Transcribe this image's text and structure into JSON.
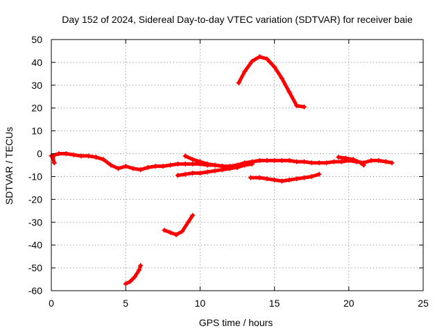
{
  "chart_data": {
    "type": "line",
    "title": "Day 152 of 2024, Sidereal Day-to-day VTEC variation (SDTVAR) for receiver baie",
    "xlabel": "GPS time / hours",
    "ylabel": "SDTVAR / TECUs",
    "xlim": [
      0,
      25
    ],
    "ylim": [
      -60,
      50
    ],
    "xticks": [
      0,
      5,
      10,
      15,
      20,
      25
    ],
    "yticks": [
      50,
      40,
      30,
      20,
      10,
      0,
      -10,
      -20,
      -30,
      -40,
      -50,
      -60
    ],
    "grid": true,
    "legend": "none",
    "colors": {
      "series": "#ff0000",
      "frame": "#000000",
      "grid": "#a0a0a0"
    },
    "series": [
      {
        "name": "SDTVAR",
        "segments": [
          {
            "x": [
              0.0,
              0.5,
              1.0,
              1.5,
              2.0,
              2.5,
              3.0,
              3.5,
              4.0,
              4.5,
              5.0,
              5.5,
              6.0,
              6.5,
              7.0,
              7.5,
              8.0,
              8.5,
              9.0,
              9.5,
              10.0,
              10.5,
              11.0,
              11.5,
              12.0,
              12.5,
              13.0,
              13.5,
              14.0,
              14.5,
              15.0,
              15.5,
              16.0,
              16.5,
              17.0,
              17.5,
              18.0,
              18.5,
              19.0,
              19.5,
              20.0,
              20.5,
              21.0,
              21.5,
              22.0,
              22.5,
              22.9
            ],
            "y": [
              -1.0,
              0.0,
              0.0,
              -0.5,
              -1.0,
              -1.0,
              -1.5,
              -2.5,
              -5.0,
              -6.5,
              -5.5,
              -6.5,
              -7.0,
              -6.0,
              -5.5,
              -5.5,
              -5.0,
              -4.5,
              -4.5,
              -4.5,
              -4.5,
              -5.0,
              -5.0,
              -5.5,
              -5.5,
              -5.0,
              -4.0,
              -3.5,
              -3.0,
              -3.0,
              -3.0,
              -3.0,
              -3.0,
              -3.5,
              -3.5,
              -4.0,
              -4.0,
              -4.0,
              -3.5,
              -3.5,
              -3.0,
              -3.5,
              -4.0,
              -3.0,
              -3.0,
              -3.5,
              -4.0
            ]
          },
          {
            "x": [
              0.1,
              0.2
            ],
            "y": [
              -1.5,
              -4.0
            ]
          },
          {
            "x": [
              9.0,
              9.5,
              10.0,
              10.5,
              11.0,
              11.5,
              12.0,
              12.5
            ],
            "y": [
              -1.0,
              -2.5,
              -3.5,
              -4.5,
              -5.0,
              -5.5,
              -6.0,
              -6.0
            ]
          },
          {
            "x": [
              8.5,
              9.0,
              9.5,
              10.0,
              10.5,
              11.0,
              11.5,
              12.0,
              12.5,
              13.0,
              13.5
            ],
            "y": [
              -9.5,
              -9.0,
              -8.5,
              -8.5,
              -8.0,
              -7.5,
              -7.0,
              -6.5,
              -6.0,
              -5.0,
              -4.5
            ]
          },
          {
            "x": [
              19.3,
              19.8,
              20.3,
              20.8,
              21.0
            ],
            "y": [
              -1.5,
              -2.0,
              -2.5,
              -4.0,
              -5.0
            ]
          },
          {
            "x": [
              12.6,
              13.0,
              13.5,
              14.0,
              14.5,
              15.0,
              15.5,
              16.0,
              16.5,
              17.0
            ],
            "y": [
              31.0,
              36.0,
              40.5,
              42.5,
              41.5,
              38.0,
              33.0,
              27.0,
              21.0,
              20.5
            ]
          },
          {
            "x": [
              13.4,
              14.0,
              14.5,
              15.0,
              15.5,
              16.0,
              16.5,
              17.0,
              17.5,
              18.0
            ],
            "y": [
              -10.5,
              -10.5,
              -11.0,
              -11.5,
              -12.0,
              -11.5,
              -11.0,
              -10.5,
              -10.0,
              -9.0
            ]
          },
          {
            "x": [
              7.6,
              8.0,
              8.4,
              8.8,
              9.2,
              9.5
            ],
            "y": [
              -33.5,
              -34.5,
              -35.5,
              -34.0,
              -30.0,
              -27.0
            ]
          },
          {
            "x": [
              5.0,
              5.3,
              5.6,
              5.9,
              6.0
            ],
            "y": [
              -57.0,
              -56.0,
              -54.0,
              -51.0,
              -49.0
            ]
          }
        ]
      }
    ]
  }
}
